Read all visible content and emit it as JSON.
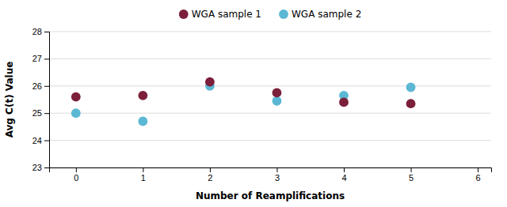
{
  "chart_data": {
    "type": "scatter",
    "xlabel": "Number of Reamplifications",
    "ylabel": "Avg C(t) Value",
    "x": [
      0,
      1,
      2,
      3,
      4,
      5
    ],
    "series": [
      {
        "name": "WGA sample 1",
        "color": "#7B1F3A",
        "values": [
          25.6,
          25.65,
          26.15,
          25.75,
          25.4,
          25.35
        ]
      },
      {
        "name": "WGA sample 2",
        "color": "#5BB8D4",
        "values": [
          25.0,
          24.7,
          26.0,
          25.45,
          25.65,
          25.95
        ]
      }
    ],
    "xlim": [
      -0.4,
      6.2
    ],
    "ylim": [
      23,
      28
    ],
    "xticks": [
      0,
      1,
      2,
      3,
      4,
      5,
      6
    ],
    "yticks": [
      23,
      24,
      25,
      26,
      27,
      28
    ],
    "grid": "y",
    "legend": "top",
    "marker": "circle"
  }
}
